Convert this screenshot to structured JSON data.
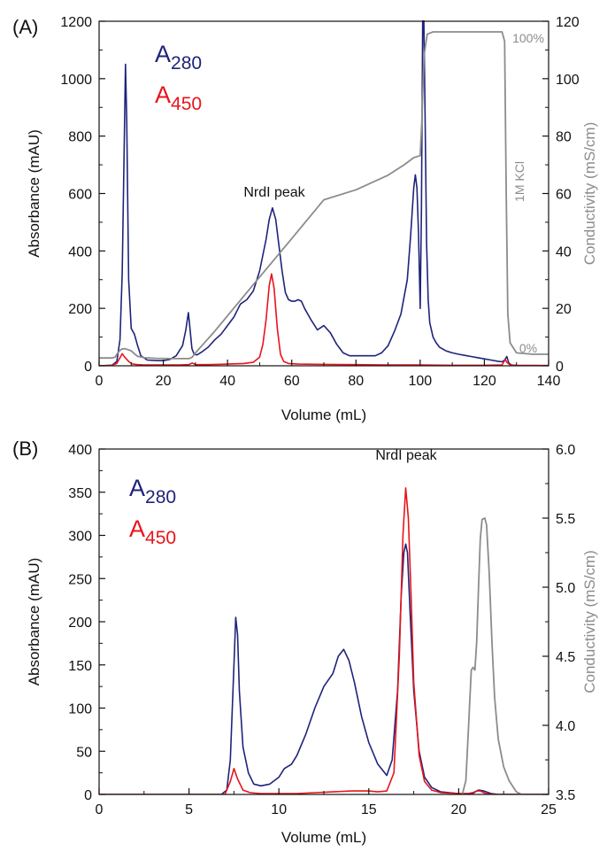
{
  "colors": {
    "a280": "#1f237a",
    "a450": "#e8141b",
    "conductivity": "#8c8c8c",
    "axis": "#111111"
  },
  "chart_data": [
    {
      "panel_label": "(A)",
      "type": "line",
      "xlabel": "Volume (mL)",
      "ylabel": "Absorbance (mAU)",
      "y2label": "Conductivity (mS/cm)",
      "xlim": [
        0,
        140
      ],
      "ylim": [
        0,
        1200
      ],
      "y2lim": [
        0,
        120
      ],
      "xticks": [
        "0",
        "20",
        "40",
        "60",
        "80",
        "100",
        "120",
        "140"
      ],
      "yticks": [
        "0",
        "200",
        "400",
        "600",
        "800",
        "1000",
        "1200"
      ],
      "y2ticks": [
        "0",
        "20",
        "40",
        "60",
        "80",
        "100",
        "120"
      ],
      "legend": {
        "entries": [
          {
            "main": "A",
            "sub": "280"
          },
          {
            "main": "A",
            "sub": "450"
          }
        ],
        "position": "top-left"
      },
      "annotations": {
        "peak": "NrdI peak",
        "salt": "1M KCl",
        "max": "100%",
        "min": "0%"
      },
      "series": [
        {
          "name": "A280",
          "axis": "left",
          "x": [
            0,
            4,
            5.5,
            6.5,
            7.2,
            7.8,
            8.2,
            8.6,
            9.2,
            10,
            11,
            12,
            13,
            15,
            18,
            20,
            22,
            24,
            26,
            27,
            27.8,
            28.3,
            28.9,
            29.6,
            30.5,
            32,
            34,
            36,
            38,
            40,
            42,
            44,
            46,
            48,
            50,
            52,
            53,
            54,
            55,
            56,
            57,
            58,
            59,
            60,
            61,
            62,
            63,
            64,
            66,
            68,
            70,
            72,
            74,
            76,
            78,
            80,
            83,
            86,
            88,
            90,
            92,
            94,
            96,
            97,
            98,
            98.5,
            99,
            99.5,
            100,
            100.4,
            100.8,
            101.1,
            101.5,
            102,
            102.5,
            103,
            104,
            105,
            106,
            108,
            110,
            112,
            114,
            116,
            118,
            120,
            122,
            124,
            125.5,
            126.3,
            127,
            127.6,
            128.5,
            130,
            135,
            140
          ],
          "y": [
            0,
            2,
            15,
            90,
            320,
            750,
            1050,
            860,
            300,
            130,
            110,
            70,
            35,
            20,
            18,
            18,
            22,
            35,
            70,
            125,
            185,
            130,
            60,
            40,
            38,
            48,
            65,
            90,
            110,
            140,
            170,
            215,
            230,
            260,
            330,
            440,
            510,
            550,
            510,
            420,
            330,
            255,
            230,
            225,
            225,
            230,
            225,
            200,
            160,
            125,
            140,
            115,
            75,
            45,
            35,
            35,
            35,
            35,
            45,
            70,
            120,
            180,
            300,
            450,
            620,
            665,
            620,
            460,
            200,
            550,
            1250,
            1250,
            900,
            430,
            230,
            150,
            100,
            80,
            65,
            52,
            45,
            40,
            36,
            32,
            28,
            24,
            20,
            16,
            14,
            20,
            32,
            10,
            2,
            0,
            0,
            0
          ],
          "clip": [
            0,
            1200
          ]
        },
        {
          "name": "A450",
          "axis": "left",
          "x": [
            0,
            4,
            5.5,
            6.5,
            7.2,
            8,
            8.8,
            9.5,
            10.5,
            12,
            14,
            20,
            25,
            28,
            29,
            30,
            34,
            40,
            45,
            48,
            50,
            51,
            52,
            53,
            53.7,
            54.5,
            55.5,
            56.5,
            57.5,
            59,
            62,
            70,
            80,
            90,
            100,
            110,
            120,
            125.5,
            126.5,
            127,
            128,
            130,
            140
          ],
          "y": [
            0,
            2,
            8,
            28,
            42,
            30,
            20,
            12,
            6,
            4,
            3,
            3,
            3,
            4,
            10,
            4,
            4,
            6,
            8,
            12,
            30,
            75,
            160,
            280,
            320,
            270,
            130,
            40,
            15,
            8,
            6,
            5,
            4,
            3,
            3,
            2,
            2,
            3,
            22,
            12,
            3,
            2,
            1
          ]
        },
        {
          "name": "Conductivity",
          "axis": "right",
          "x": [
            0,
            4,
            5,
            6,
            7,
            8,
            9,
            10,
            11,
            12,
            14,
            18,
            22,
            26,
            28,
            29,
            30,
            32,
            34,
            36,
            40,
            50,
            60,
            70,
            80,
            90,
            95,
            98,
            100,
            100.5,
            101.2,
            102.2,
            104,
            120,
            125.5,
            126.3,
            126.8,
            127.3,
            128,
            130,
            135,
            140
          ],
          "y": [
            2.7,
            2.7,
            3,
            4.8,
            5.8,
            6,
            5.6,
            5.2,
            4.2,
            3.3,
            2.8,
            2.6,
            2.5,
            2.5,
            2.5,
            3,
            4.5,
            7,
            9.5,
            12,
            17.4,
            30.9,
            44.3,
            57.8,
            61.3,
            66.4,
            70,
            72.5,
            73.2,
            85,
            108,
            115.5,
            116.3,
            116.3,
            116.3,
            113,
            60,
            18,
            8,
            4.5,
            4,
            4
          ]
        }
      ]
    },
    {
      "panel_label": "(B)",
      "type": "line",
      "xlabel": "Volume (mL)",
      "ylabel": "Absorbance (mAU)",
      "y2label": "Conductivity (mS/cm)",
      "xlim": [
        0,
        25
      ],
      "ylim": [
        0,
        400
      ],
      "y2lim": [
        3.5,
        6.0
      ],
      "xticks": [
        "0",
        "5",
        "10",
        "15",
        "20",
        "25"
      ],
      "yticks": [
        "0",
        "50",
        "100",
        "150",
        "200",
        "250",
        "300",
        "350",
        "400"
      ],
      "y2ticks": [
        "3.5",
        "4.0",
        "4.5",
        "5.0",
        "5.5",
        "6.0"
      ],
      "legend": {
        "entries": [
          {
            "main": "A",
            "sub": "280"
          },
          {
            "main": "A",
            "sub": "450"
          }
        ],
        "position": "top-left"
      },
      "annotations": {
        "peak": "NrdI peak"
      },
      "series": [
        {
          "name": "A280",
          "axis": "left",
          "x": [
            0,
            6.8,
            7.1,
            7.3,
            7.5,
            7.6,
            7.7,
            7.8,
            8,
            8.3,
            8.6,
            9,
            9.5,
            10,
            10.3,
            10.7,
            11,
            11.5,
            12,
            12.5,
            13,
            13.3,
            13.6,
            13.9,
            14.2,
            14.6,
            15,
            15.5,
            16,
            16.3,
            16.6,
            16.8,
            16.95,
            17.05,
            17.15,
            17.3,
            17.5,
            17.8,
            18.1,
            18.5,
            19,
            19.5,
            20,
            20.5,
            20.8,
            21.1,
            21.4,
            21.8,
            22.2,
            23,
            25
          ],
          "y": [
            0,
            0,
            5,
            40,
            150,
            205,
            185,
            120,
            55,
            25,
            12,
            10,
            12,
            20,
            30,
            35,
            45,
            70,
            100,
            125,
            140,
            160,
            168,
            155,
            130,
            90,
            60,
            35,
            22,
            40,
            120,
            230,
            280,
            290,
            280,
            210,
            120,
            50,
            20,
            8,
            3,
            2,
            1,
            1,
            2,
            5,
            4,
            1,
            0,
            0,
            0
          ]
        },
        {
          "name": "A450",
          "axis": "left",
          "x": [
            0,
            7,
            7.3,
            7.5,
            7.7,
            8,
            8.4,
            9,
            10,
            11,
            12,
            13,
            14,
            15,
            15.5,
            16,
            16.4,
            16.7,
            16.9,
            17.05,
            17.2,
            17.35,
            17.5,
            17.8,
            18.1,
            18.5,
            19,
            20,
            20.8,
            21,
            21.2,
            21.5,
            22,
            25
          ],
          "y": [
            0,
            0,
            15,
            30,
            18,
            5,
            2,
            1,
            1,
            1,
            2,
            3,
            4,
            4,
            3,
            4,
            25,
            160,
            300,
            355,
            320,
            230,
            130,
            45,
            15,
            5,
            2,
            1,
            1,
            4,
            4,
            1,
            0,
            0
          ]
        },
        {
          "name": "Conductivity",
          "axis": "right",
          "x": [
            20.2,
            20.4,
            20.55,
            20.7,
            20.8,
            20.9,
            21,
            21.1,
            21.2,
            21.3,
            21.45,
            21.55,
            21.7,
            21.85,
            22,
            22.2,
            22.5,
            22.8,
            23.2,
            23.5
          ],
          "y": [
            3.5,
            3.6,
            4.0,
            4.4,
            4.42,
            4.4,
            4.6,
            5.0,
            5.35,
            5.49,
            5.5,
            5.45,
            5.1,
            4.6,
            4.2,
            3.9,
            3.7,
            3.6,
            3.52,
            3.5
          ]
        }
      ]
    }
  ]
}
